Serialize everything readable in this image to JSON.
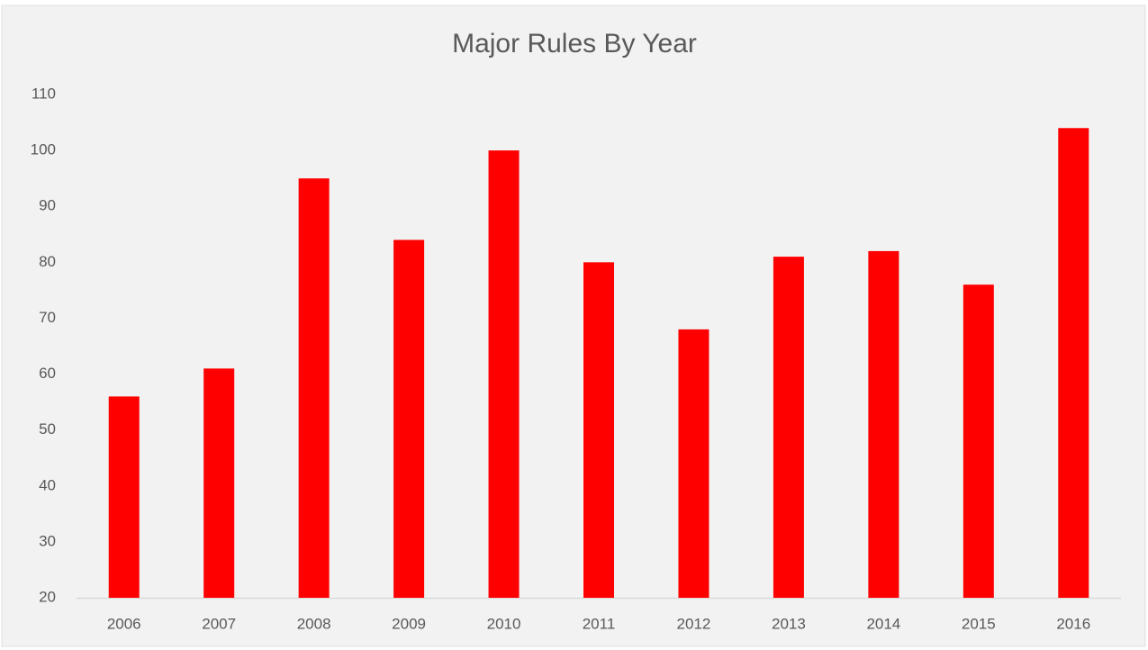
{
  "chart_data": {
    "type": "bar",
    "title": "Major Rules By Year",
    "categories": [
      "2006",
      "2007",
      "2008",
      "2009",
      "2010",
      "2011",
      "2012",
      "2013",
      "2014",
      "2015",
      "2016"
    ],
    "values": [
      56,
      61,
      95,
      84,
      100,
      80,
      68,
      81,
      82,
      76,
      104
    ],
    "color": "#ff0000",
    "ylim": [
      20,
      110
    ],
    "yticks": [
      20,
      30,
      40,
      50,
      60,
      70,
      80,
      90,
      100,
      110
    ],
    "grid": false
  }
}
